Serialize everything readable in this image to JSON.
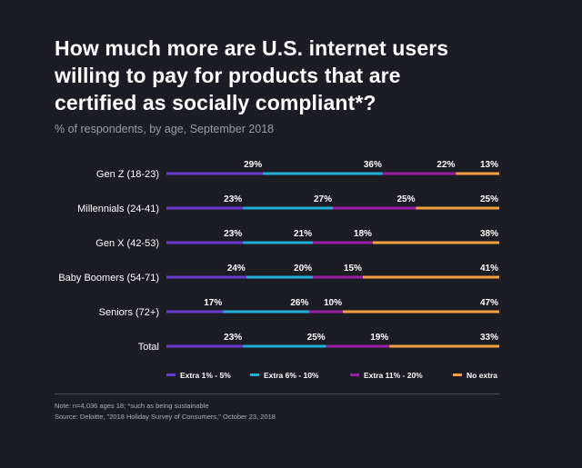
{
  "title_lines": [
    "How much more are U.S. internet users",
    "willing to pay for products that are",
    "certified as socially compliant*?"
  ],
  "subtitle": "% of respondents, by age, September 2018",
  "colors": {
    "background": "#1c1c24",
    "extra_1_5": "#6a3bd1",
    "extra_6_10": "#1fb0d8",
    "extra_11_20": "#9a1fa6",
    "no_extra": "#f2a142"
  },
  "chart_data": {
    "type": "bar",
    "orientation": "horizontal",
    "stacked": true,
    "categories": [
      "Gen Z (18-23)",
      "Millennials (24-41)",
      "Gen X (42-53)",
      "Baby Boomers (54-71)",
      "Seniors (72+)",
      "Total"
    ],
    "series": [
      {
        "name": "Extra 1% - 5%",
        "values": [
          29,
          23,
          23,
          24,
          17,
          23
        ]
      },
      {
        "name": "Extra 6% - 10%",
        "values": [
          36,
          27,
          21,
          20,
          26,
          25
        ]
      },
      {
        "name": "Extra 11% - 20%",
        "values": [
          22,
          25,
          18,
          15,
          10,
          19
        ]
      },
      {
        "name": "No extra",
        "values": [
          13,
          25,
          38,
          41,
          47,
          33
        ]
      }
    ],
    "value_suffix": "%",
    "legend_position": "bottom"
  },
  "notes": {
    "note": "Note: n=4,036 ages 18; *such as being sustainable",
    "source": "Source: Deloitte, \"2018 Holiday Survey of Consumers,\" October 23, 2018"
  }
}
